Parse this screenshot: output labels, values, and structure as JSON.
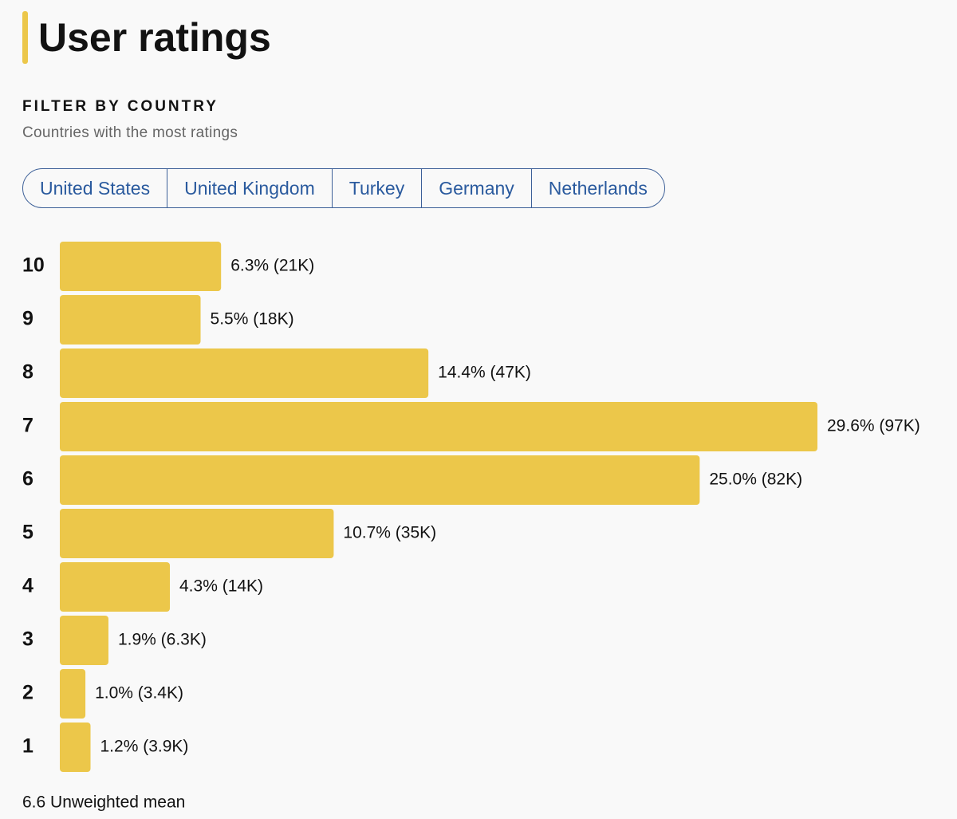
{
  "header": {
    "title": "User ratings"
  },
  "filter": {
    "heading": "FILTER BY COUNTRY",
    "subheading": "Countries with the most ratings",
    "countries": [
      "United States",
      "United Kingdom",
      "Turkey",
      "Germany",
      "Netherlands"
    ]
  },
  "chart_data": {
    "type": "bar",
    "orientation": "horizontal",
    "color": "#ecc74a",
    "categories": [
      "10",
      "9",
      "8",
      "7",
      "6",
      "5",
      "4",
      "3",
      "2",
      "1"
    ],
    "values": [
      6.3,
      5.5,
      14.4,
      29.6,
      25.0,
      10.7,
      4.3,
      1.9,
      1.0,
      1.2
    ],
    "value_labels": [
      "6.3% (21K)",
      "5.5% (18K)",
      "14.4% (47K)",
      "29.6% (97K)",
      "25.0% (82K)",
      "10.7% (35K)",
      "4.3% (14K)",
      "1.9% (6.3K)",
      "1.0% (3.4K)",
      "1.2% (3.9K)"
    ]
  },
  "footer": {
    "text": "6.6 Unweighted mean"
  }
}
